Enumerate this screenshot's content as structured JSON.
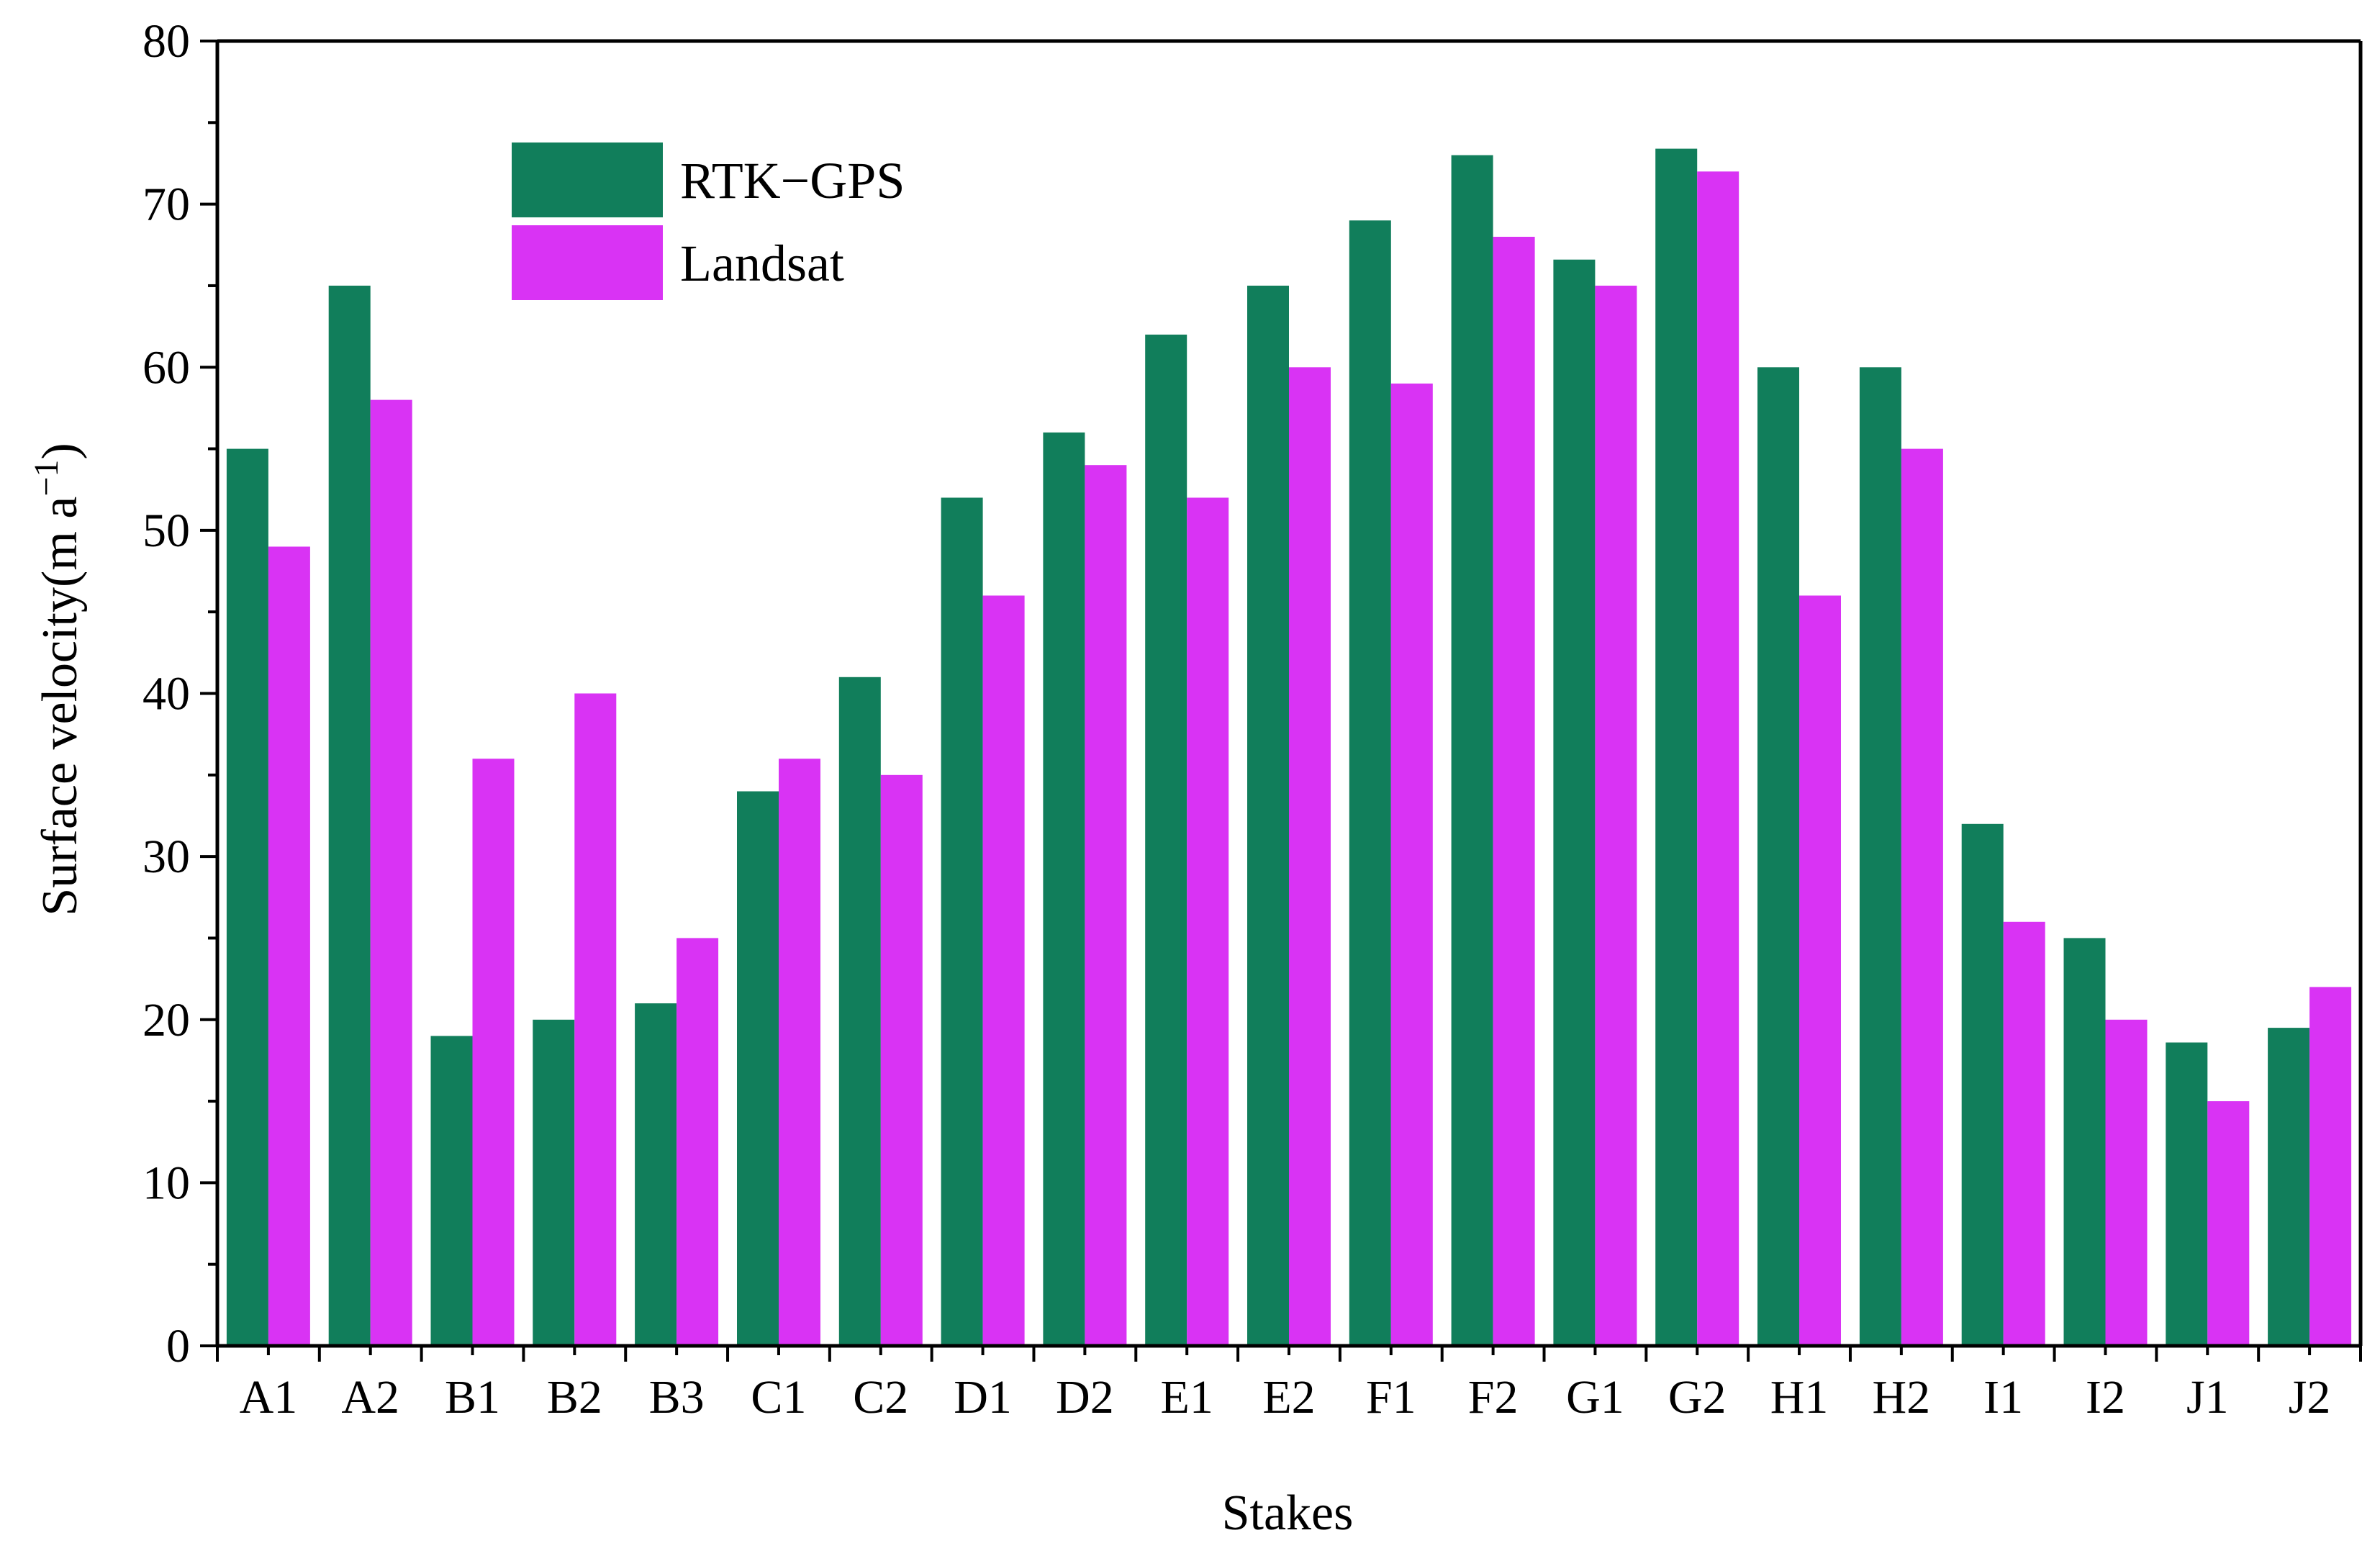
{
  "chart_data": {
    "type": "bar",
    "title": "",
    "xlabel": "Stakes",
    "ylabel": "Surface velocity(m a",
    "ylabel_superscript": "−1",
    "ylabel_close": ")",
    "ylim": [
      0,
      80
    ],
    "yticks": [
      0,
      10,
      20,
      30,
      40,
      50,
      60,
      70,
      80
    ],
    "yticks_text": [
      "0",
      "10",
      "20",
      "30",
      "40",
      "50",
      "60",
      "70",
      "80"
    ],
    "categories": [
      "A1",
      "A2",
      "B1",
      "B2",
      "B3",
      "C1",
      "C2",
      "D1",
      "D2",
      "E1",
      "E2",
      "F1",
      "F2",
      "G1",
      "G2",
      "H1",
      "H2",
      "I1",
      "I2",
      "J1",
      "J2"
    ],
    "series": [
      {
        "name": "RTK−GPS",
        "color": "#117e5b",
        "values": [
          55,
          65,
          19,
          20,
          21,
          34,
          41,
          52,
          56,
          62,
          65,
          69,
          73,
          66.6,
          73.4,
          60,
          60,
          32,
          25,
          18.6,
          19.5
        ]
      },
      {
        "name": "Landsat",
        "color": "#d933f4",
        "values": [
          49,
          58,
          36,
          40,
          25,
          36,
          35,
          46,
          54,
          52,
          60,
          59,
          68,
          65,
          72,
          46,
          55,
          26,
          20,
          15,
          22
        ]
      }
    ],
    "legend_position": "top-left",
    "grid": false
  }
}
